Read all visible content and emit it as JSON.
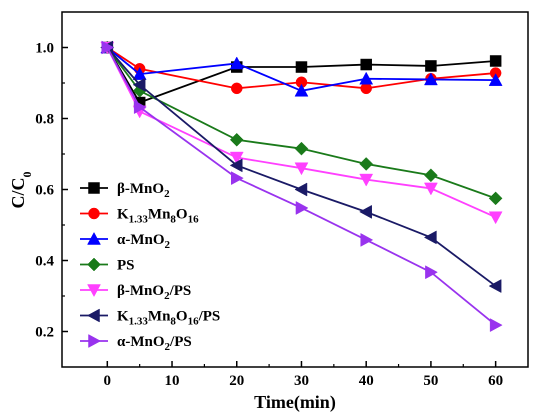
{
  "chart_data": {
    "type": "line",
    "xlabel": "Time(min)",
    "ylabel": "C/C₀",
    "xlim": [
      -7,
      65
    ],
    "ylim": [
      0.1,
      1.1
    ],
    "x_ticks": [
      0,
      10,
      20,
      30,
      40,
      50,
      60
    ],
    "y_ticks": [
      0.2,
      0.4,
      0.6,
      0.8,
      1.0
    ],
    "x_tick_labels": [
      "0",
      "10",
      "20",
      "30",
      "40",
      "50",
      "60"
    ],
    "y_tick_labels": [
      "0.2",
      "0.4",
      "0.6",
      "0.8",
      "1.0"
    ],
    "grid": false,
    "legend_position": "lower-left",
    "series": [
      {
        "key": "s1",
        "name": "β-MnO2",
        "parts": [
          {
            "t": "β-MnO"
          },
          {
            "t": "2",
            "s": "sub"
          }
        ],
        "color": "#000000",
        "marker": "square",
        "x": [
          0,
          5,
          20,
          30,
          40,
          50,
          60
        ],
        "y": [
          1.0,
          0.845,
          0.945,
          0.945,
          0.952,
          0.948,
          0.962
        ]
      },
      {
        "key": "s2",
        "name": "K1.33Mn8O16",
        "parts": [
          {
            "t": "K"
          },
          {
            "t": "1.33",
            "s": "sub"
          },
          {
            "t": "Mn"
          },
          {
            "t": "8",
            "s": "sub"
          },
          {
            "t": "O"
          },
          {
            "t": "16",
            "s": "sub"
          }
        ],
        "color": "#ff0000",
        "marker": "circle",
        "x": [
          0,
          5,
          20,
          30,
          40,
          50,
          60
        ],
        "y": [
          1.0,
          0.94,
          0.885,
          0.902,
          0.885,
          0.912,
          0.928
        ]
      },
      {
        "key": "s3",
        "name": "α-MnO2",
        "parts": [
          {
            "t": "α-MnO"
          },
          {
            "t": "2",
            "s": "sub"
          }
        ],
        "color": "#0000ff",
        "marker": "triangle-up",
        "x": [
          0,
          5,
          20,
          30,
          40,
          50,
          60
        ],
        "y": [
          1.0,
          0.925,
          0.955,
          0.878,
          0.912,
          0.91,
          0.908
        ]
      },
      {
        "key": "s4",
        "name": "PS",
        "parts": [
          {
            "t": "PS"
          }
        ],
        "color": "#1a7a1a",
        "marker": "diamond",
        "x": [
          0,
          5,
          20,
          30,
          40,
          50,
          60
        ],
        "y": [
          1.0,
          0.878,
          0.74,
          0.715,
          0.672,
          0.64,
          0.575
        ]
      },
      {
        "key": "s5",
        "name": "β-MnO2/PS",
        "parts": [
          {
            "t": "β-MnO"
          },
          {
            "t": "2",
            "s": "sub"
          },
          {
            "t": "/PS"
          }
        ],
        "color": "#ff40ff",
        "marker": "triangle-down",
        "x": [
          0,
          5,
          20,
          30,
          40,
          50,
          60
        ],
        "y": [
          1.0,
          0.82,
          0.69,
          0.66,
          0.628,
          0.603,
          0.522
        ]
      },
      {
        "key": "s6",
        "name": "K1.33Mn8O16/PS",
        "parts": [
          {
            "t": "K"
          },
          {
            "t": "1.33",
            "s": "sub"
          },
          {
            "t": "Mn"
          },
          {
            "t": "8",
            "s": "sub"
          },
          {
            "t": "O"
          },
          {
            "t": "16",
            "s": "sub"
          },
          {
            "t": "/PS"
          }
        ],
        "color": "#1a1a66",
        "marker": "triangle-left",
        "x": [
          0,
          5,
          20,
          30,
          40,
          50,
          60
        ],
        "y": [
          1.0,
          0.895,
          0.668,
          0.6,
          0.537,
          0.465,
          0.328
        ]
      },
      {
        "key": "s7",
        "name": "α-MnO2/PS",
        "parts": [
          {
            "t": "α-MnO"
          },
          {
            "t": "2",
            "s": "sub"
          },
          {
            "t": "/PS"
          }
        ],
        "color": "#9933ee",
        "marker": "triangle-right",
        "x": [
          0,
          5,
          20,
          30,
          40,
          50,
          60
        ],
        "y": [
          1.0,
          0.832,
          0.632,
          0.548,
          0.458,
          0.367,
          0.218
        ]
      }
    ]
  }
}
